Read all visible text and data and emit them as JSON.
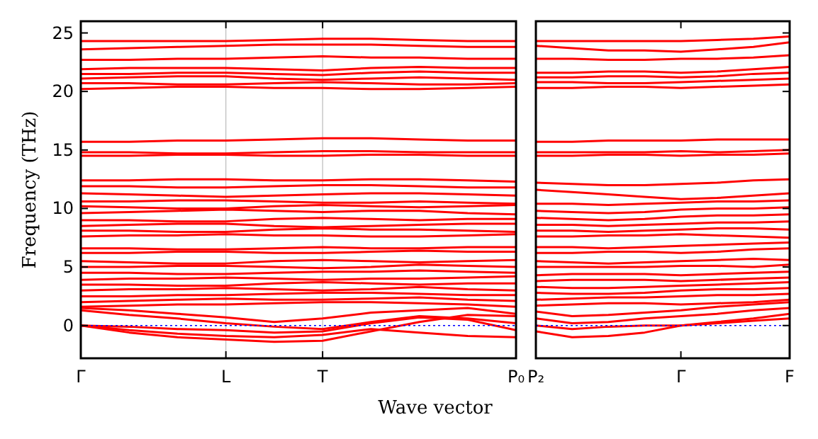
{
  "chart_data": [
    {
      "type": "line",
      "ylabel": "Frequency (THz)",
      "xlabel": "Wave vector",
      "categories": [
        "Γ",
        null,
        null,
        "L",
        null,
        "T",
        null,
        null,
        null,
        "P₀"
      ],
      "ylim": [
        -2.8,
        26
      ],
      "yticks": [
        0,
        5,
        10,
        15,
        20,
        25
      ],
      "grid": "x",
      "ref_lines": [
        {
          "axis": "y",
          "value": 0,
          "color": "#0000ff",
          "line_style": "dotted"
        }
      ],
      "series": [
        {
          "color": "#ff0000",
          "values": [
            0,
            -0.6,
            -1.0,
            -1.2,
            -1.4,
            -1.3,
            -0.5,
            0.3,
            0.9,
            0.8
          ]
        },
        {
          "color": "#ff0000",
          "values": [
            0,
            -0.4,
            -0.7,
            -0.9,
            -1.0,
            -0.8,
            -0.3,
            -0.6,
            -0.9,
            -1.0
          ]
        },
        {
          "color": "#ff0000",
          "values": [
            0,
            -0.1,
            -0.3,
            -0.4,
            -0.6,
            -0.5,
            0.2,
            0.7,
            0.5,
            -0.4
          ]
        },
        {
          "color": "#ff0000",
          "values": [
            1.3,
            0.9,
            0.6,
            0.2,
            -0.1,
            -0.3,
            0.3,
            0.8,
            0.6,
            0.2
          ]
        },
        {
          "color": "#ff0000",
          "values": [
            1.5,
            1.3,
            1.0,
            0.7,
            0.3,
            0.6,
            1.1,
            1.3,
            1.5,
            1.0
          ]
        },
        {
          "color": "#ff0000",
          "values": [
            1.6,
            1.7,
            1.8,
            1.8,
            1.9,
            2.0,
            2.0,
            1.9,
            1.8,
            1.6
          ]
        },
        {
          "color": "#ff0000",
          "values": [
            2.0,
            2.1,
            2.2,
            2.3,
            2.2,
            2.2,
            2.3,
            2.4,
            2.2,
            2.1
          ]
        },
        {
          "color": "#ff0000",
          "values": [
            2.5,
            2.5,
            2.6,
            2.6,
            2.7,
            2.8,
            2.8,
            2.7,
            2.6,
            2.6
          ]
        },
        {
          "color": "#ff0000",
          "values": [
            3.0,
            3.1,
            3.1,
            3.2,
            3.1,
            3.0,
            3.1,
            3.3,
            3.1,
            3.0
          ]
        },
        {
          "color": "#ff0000",
          "values": [
            3.5,
            3.5,
            3.4,
            3.4,
            3.6,
            3.7,
            3.6,
            3.5,
            3.6,
            3.6
          ]
        },
        {
          "color": "#ff0000",
          "values": [
            3.9,
            4.0,
            4.0,
            4.1,
            4.0,
            3.9,
            4.0,
            4.0,
            4.1,
            4.2
          ]
        },
        {
          "color": "#ff0000",
          "values": [
            4.5,
            4.5,
            4.4,
            4.4,
            4.5,
            4.6,
            4.6,
            4.7,
            4.6,
            4.5
          ]
        },
        {
          "color": "#ff0000",
          "values": [
            5.0,
            5.0,
            5.1,
            5.1,
            5.0,
            4.9,
            5.0,
            5.2,
            5.1,
            5.0
          ]
        },
        {
          "color": "#ff0000",
          "values": [
            5.5,
            5.4,
            5.3,
            5.3,
            5.5,
            5.6,
            5.5,
            5.4,
            5.5,
            5.6
          ]
        },
        {
          "color": "#ff0000",
          "values": [
            6.2,
            6.2,
            6.3,
            6.3,
            6.2,
            6.2,
            6.3,
            6.4,
            6.3,
            6.3
          ]
        },
        {
          "color": "#ff0000",
          "values": [
            6.6,
            6.6,
            6.5,
            6.5,
            6.6,
            6.7,
            6.6,
            6.6,
            6.7,
            6.7
          ]
        },
        {
          "color": "#ff0000",
          "values": [
            7.6,
            7.7,
            7.7,
            7.8,
            7.7,
            7.7,
            7.6,
            7.6,
            7.7,
            7.8
          ]
        },
        {
          "color": "#ff0000",
          "values": [
            8.1,
            8.1,
            8.0,
            8.0,
            8.2,
            8.3,
            8.2,
            8.2,
            8.1,
            8.0
          ]
        },
        {
          "color": "#ff0000",
          "values": [
            8.5,
            8.6,
            8.7,
            8.7,
            8.5,
            8.4,
            8.5,
            8.6,
            8.7,
            8.7
          ]
        },
        {
          "color": "#ff0000",
          "values": [
            9.0,
            9.0,
            8.9,
            8.9,
            9.1,
            9.2,
            9.1,
            9.0,
            9.1,
            9.1
          ]
        },
        {
          "color": "#ff0000",
          "values": [
            9.6,
            9.7,
            9.8,
            9.9,
            9.8,
            9.7,
            9.8,
            9.8,
            9.6,
            9.5
          ]
        },
        {
          "color": "#ff0000",
          "values": [
            10.2,
            10.1,
            10.0,
            10.0,
            10.2,
            10.3,
            10.2,
            10.1,
            10.2,
            10.3
          ]
        },
        {
          "color": "#ff0000",
          "values": [
            10.6,
            10.6,
            10.7,
            10.7,
            10.6,
            10.5,
            10.5,
            10.6,
            10.5,
            10.4
          ]
        },
        {
          "color": "#ff0000",
          "values": [
            11.3,
            11.2,
            11.1,
            11.0,
            11.1,
            11.2,
            11.3,
            11.3,
            11.2,
            11.1
          ]
        },
        {
          "color": "#ff0000",
          "values": [
            11.9,
            11.9,
            11.8,
            11.8,
            11.9,
            12.0,
            12.0,
            11.9,
            11.8,
            11.8
          ]
        },
        {
          "color": "#ff0000",
          "values": [
            12.4,
            12.4,
            12.5,
            12.5,
            12.4,
            12.4,
            12.5,
            12.5,
            12.4,
            12.3
          ]
        },
        {
          "color": "#ff0000",
          "values": [
            14.5,
            14.5,
            14.6,
            14.6,
            14.5,
            14.5,
            14.6,
            14.6,
            14.5,
            14.5
          ]
        },
        {
          "color": "#ff0000",
          "values": [
            14.8,
            14.8,
            14.7,
            14.7,
            14.8,
            14.9,
            14.9,
            14.8,
            14.8,
            14.8
          ]
        },
        {
          "color": "#ff0000",
          "values": [
            15.7,
            15.7,
            15.8,
            15.8,
            15.9,
            16.0,
            16.0,
            15.9,
            15.8,
            15.8
          ]
        },
        {
          "color": "#ff0000",
          "values": [
            20.2,
            20.3,
            20.4,
            20.4,
            20.3,
            20.3,
            20.2,
            20.2,
            20.3,
            20.4
          ]
        },
        {
          "color": "#ff0000",
          "values": [
            20.7,
            20.7,
            20.6,
            20.6,
            20.7,
            20.8,
            20.7,
            20.6,
            20.6,
            20.7
          ]
        },
        {
          "color": "#ff0000",
          "values": [
            21.1,
            21.2,
            21.3,
            21.3,
            21.1,
            21.0,
            21.1,
            21.2,
            21.1,
            21.0
          ]
        },
        {
          "color": "#ff0000",
          "values": [
            21.5,
            21.5,
            21.6,
            21.6,
            21.5,
            21.4,
            21.6,
            21.7,
            21.6,
            21.6
          ]
        },
        {
          "color": "#ff0000",
          "values": [
            21.9,
            22.0,
            22.0,
            22.0,
            21.9,
            21.8,
            22.0,
            22.1,
            22.0,
            22.0
          ]
        },
        {
          "color": "#ff0000",
          "values": [
            22.7,
            22.7,
            22.8,
            22.8,
            22.9,
            23.0,
            22.9,
            22.9,
            22.8,
            22.8
          ]
        },
        {
          "color": "#ff0000",
          "values": [
            23.6,
            23.7,
            23.8,
            23.9,
            24.0,
            24.0,
            24.0,
            23.9,
            23.8,
            23.8
          ]
        },
        {
          "color": "#ff0000",
          "values": [
            24.3,
            24.3,
            24.3,
            24.3,
            24.4,
            24.5,
            24.5,
            24.4,
            24.3,
            24.3
          ]
        }
      ]
    },
    {
      "type": "line",
      "categories": [
        "P₂",
        null,
        null,
        null,
        "Γ",
        null,
        null,
        "F"
      ],
      "ylim": [
        -2.8,
        26
      ],
      "yticks": [
        0,
        5,
        10,
        15,
        20,
        25
      ],
      "tick_labels": "x",
      "ref_lines": [
        {
          "axis": "y",
          "value": 0,
          "color": "#0000ff",
          "line_style": "dotted"
        }
      ],
      "series": [
        {
          "color": "#ff0000",
          "values": [
            -0.5,
            -1.0,
            -0.9,
            -0.6,
            0,
            0.3,
            0.6,
            1.0
          ]
        },
        {
          "color": "#ff0000",
          "values": [
            0,
            -0.3,
            -0.1,
            0,
            0,
            0.2,
            0.4,
            0.6
          ]
        },
        {
          "color": "#ff0000",
          "values": [
            0.6,
            0.2,
            0.3,
            0.6,
            0.8,
            1.0,
            1.3,
            1.5
          ]
        },
        {
          "color": "#ff0000",
          "values": [
            1.2,
            0.8,
            0.9,
            1.1,
            1.3,
            1.6,
            1.8,
            2.0
          ]
        },
        {
          "color": "#ff0000",
          "values": [
            1.7,
            1.8,
            1.9,
            1.9,
            1.8,
            1.9,
            2.0,
            2.2
          ]
        },
        {
          "color": "#ff0000",
          "values": [
            2.2,
            2.3,
            2.4,
            2.4,
            2.5,
            2.6,
            2.6,
            2.7
          ]
        },
        {
          "color": "#ff0000",
          "values": [
            2.8,
            2.7,
            2.7,
            2.8,
            3.0,
            3.1,
            3.1,
            3.2
          ]
        },
        {
          "color": "#ff0000",
          "values": [
            3.3,
            3.2,
            3.2,
            3.3,
            3.4,
            3.5,
            3.6,
            3.7
          ]
        },
        {
          "color": "#ff0000",
          "values": [
            3.8,
            3.9,
            3.9,
            3.9,
            3.8,
            3.9,
            4.0,
            4.1
          ]
        },
        {
          "color": "#ff0000",
          "values": [
            4.3,
            4.4,
            4.4,
            4.4,
            4.3,
            4.4,
            4.5,
            4.6
          ]
        },
        {
          "color": "#ff0000",
          "values": [
            5.0,
            5.0,
            5.0,
            5.0,
            5.1,
            5.1,
            5.0,
            5.2
          ]
        },
        {
          "color": "#ff0000",
          "values": [
            5.5,
            5.4,
            5.3,
            5.4,
            5.5,
            5.6,
            5.7,
            5.6
          ]
        },
        {
          "color": "#ff0000",
          "values": [
            6.2,
            6.2,
            6.3,
            6.3,
            6.2,
            6.3,
            6.5,
            6.6
          ]
        },
        {
          "color": "#ff0000",
          "values": [
            6.7,
            6.7,
            6.6,
            6.7,
            6.8,
            6.9,
            7.0,
            7.1
          ]
        },
        {
          "color": "#ff0000",
          "values": [
            7.6,
            7.6,
            7.7,
            7.7,
            7.8,
            7.7,
            7.6,
            7.5
          ]
        },
        {
          "color": "#ff0000",
          "values": [
            8.1,
            8.1,
            8.0,
            8.1,
            8.2,
            8.3,
            8.3,
            8.2
          ]
        },
        {
          "color": "#ff0000",
          "values": [
            8.6,
            8.6,
            8.5,
            8.6,
            8.7,
            8.8,
            8.8,
            8.9
          ]
        },
        {
          "color": "#ff0000",
          "values": [
            9.2,
            9.1,
            9.0,
            9.1,
            9.3,
            9.4,
            9.4,
            9.5
          ]
        },
        {
          "color": "#ff0000",
          "values": [
            9.8,
            9.7,
            9.6,
            9.7,
            9.9,
            10.0,
            10.0,
            10.1
          ]
        },
        {
          "color": "#ff0000",
          "values": [
            10.4,
            10.4,
            10.3,
            10.4,
            10.5,
            10.6,
            10.6,
            10.7
          ]
        },
        {
          "color": "#ff0000",
          "values": [
            11.6,
            11.4,
            11.2,
            11.0,
            10.8,
            10.9,
            11.1,
            11.3
          ]
        },
        {
          "color": "#ff0000",
          "values": [
            12.2,
            12.1,
            12.0,
            12.0,
            12.1,
            12.2,
            12.4,
            12.5
          ]
        },
        {
          "color": "#ff0000",
          "values": [
            14.5,
            14.5,
            14.6,
            14.6,
            14.5,
            14.6,
            14.6,
            14.7
          ]
        },
        {
          "color": "#ff0000",
          "values": [
            14.8,
            14.8,
            14.8,
            14.8,
            14.9,
            14.8,
            14.9,
            15.0
          ]
        },
        {
          "color": "#ff0000",
          "values": [
            15.7,
            15.7,
            15.8,
            15.8,
            15.8,
            15.9,
            15.9,
            15.9
          ]
        },
        {
          "color": "#ff0000",
          "values": [
            20.3,
            20.3,
            20.4,
            20.4,
            20.3,
            20.4,
            20.5,
            20.6
          ]
        },
        {
          "color": "#ff0000",
          "values": [
            20.8,
            20.8,
            20.7,
            20.7,
            20.8,
            20.9,
            21.0,
            21.1
          ]
        },
        {
          "color": "#ff0000",
          "values": [
            21.2,
            21.2,
            21.3,
            21.3,
            21.2,
            21.3,
            21.5,
            21.6
          ]
        },
        {
          "color": "#ff0000",
          "values": [
            21.6,
            21.6,
            21.7,
            21.7,
            21.6,
            21.7,
            21.9,
            22.1
          ]
        },
        {
          "color": "#ff0000",
          "values": [
            22.8,
            22.8,
            22.7,
            22.7,
            22.8,
            22.8,
            22.9,
            23.1
          ]
        },
        {
          "color": "#ff0000",
          "values": [
            23.9,
            23.7,
            23.5,
            23.5,
            23.4,
            23.6,
            23.8,
            24.2
          ]
        },
        {
          "color": "#ff0000",
          "values": [
            24.3,
            24.3,
            24.3,
            24.3,
            24.3,
            24.4,
            24.5,
            24.7
          ]
        }
      ]
    }
  ]
}
